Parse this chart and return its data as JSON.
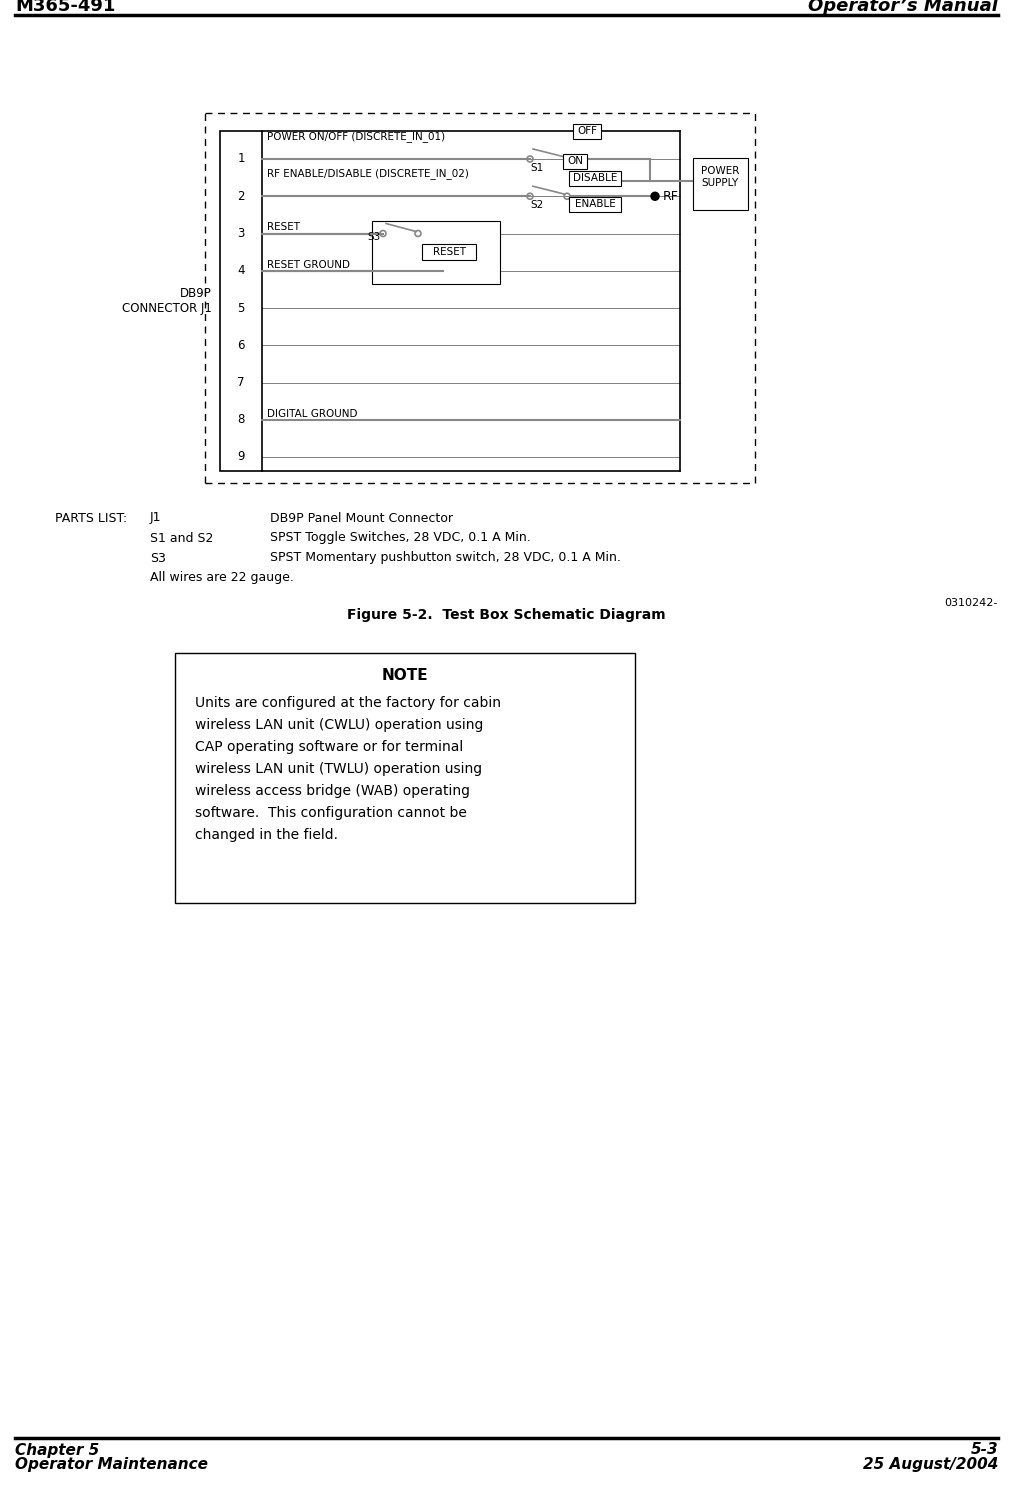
{
  "title_left": "M365-491",
  "title_right": "Operator’s Manual",
  "footer_left_1": "Chapter 5",
  "footer_left_2": "Operator Maintenance",
  "footer_right_1": "5-3",
  "footer_right_2": "25 August/2004",
  "figure_caption": "Figure 5-2.  Test Box Schematic Diagram",
  "parts_list_title": "PARTS LIST:",
  "parts_list_j1": "J1",
  "parts_list_j1_desc": "DB9P Panel Mount Connector",
  "parts_list_s1s2": "S1 and S2",
  "parts_list_s1s2_desc": "SPST Toggle Switches, 28 VDC, 0.1 A Min.",
  "parts_list_s3": "S3",
  "parts_list_s3_desc": "SPST Momentary pushbutton switch, 28 VDC, 0.1 A Min.",
  "parts_list_wire": "All wires are 22 gauge.",
  "part_number": "0310242-",
  "note_title": "NOTE",
  "note_lines": [
    "Units are configured at the factory for cabin",
    "wireless LAN unit (CWLU) operation using",
    "CAP operating software or for terminal",
    "wireless LAN unit (TWLU) operation using",
    "wireless access bridge (WAB) operating",
    "software.  This configuration cannot be",
    "changed in the field."
  ],
  "connector_label": "DB9P\nCONNECTOR J1",
  "pin_numbers": [
    "1",
    "2",
    "3",
    "4",
    "5",
    "6",
    "7",
    "8",
    "9"
  ],
  "label_power_onoff": "POWER ON/OFF (DISCRETE_IN_01)",
  "label_rf_enable": "RF ENABLE/DISABLE (DISCRETE_IN_02)",
  "label_reset": "RESET",
  "label_reset_ground": "RESET GROUND",
  "label_digital_ground": "DIGITAL GROUND",
  "label_s1": "S1",
  "label_s2": "S2",
  "label_s3": "S3",
  "label_off": "OFF",
  "label_on": "ON",
  "label_disable": "DISABLE",
  "label_enable": "ENABLE",
  "label_reset_btn": "RESET",
  "label_power_supply": "POWER\nSUPPLY",
  "label_rf": "RF",
  "bg_color": "#ffffff",
  "black": "#000000",
  "gray": "#888888"
}
